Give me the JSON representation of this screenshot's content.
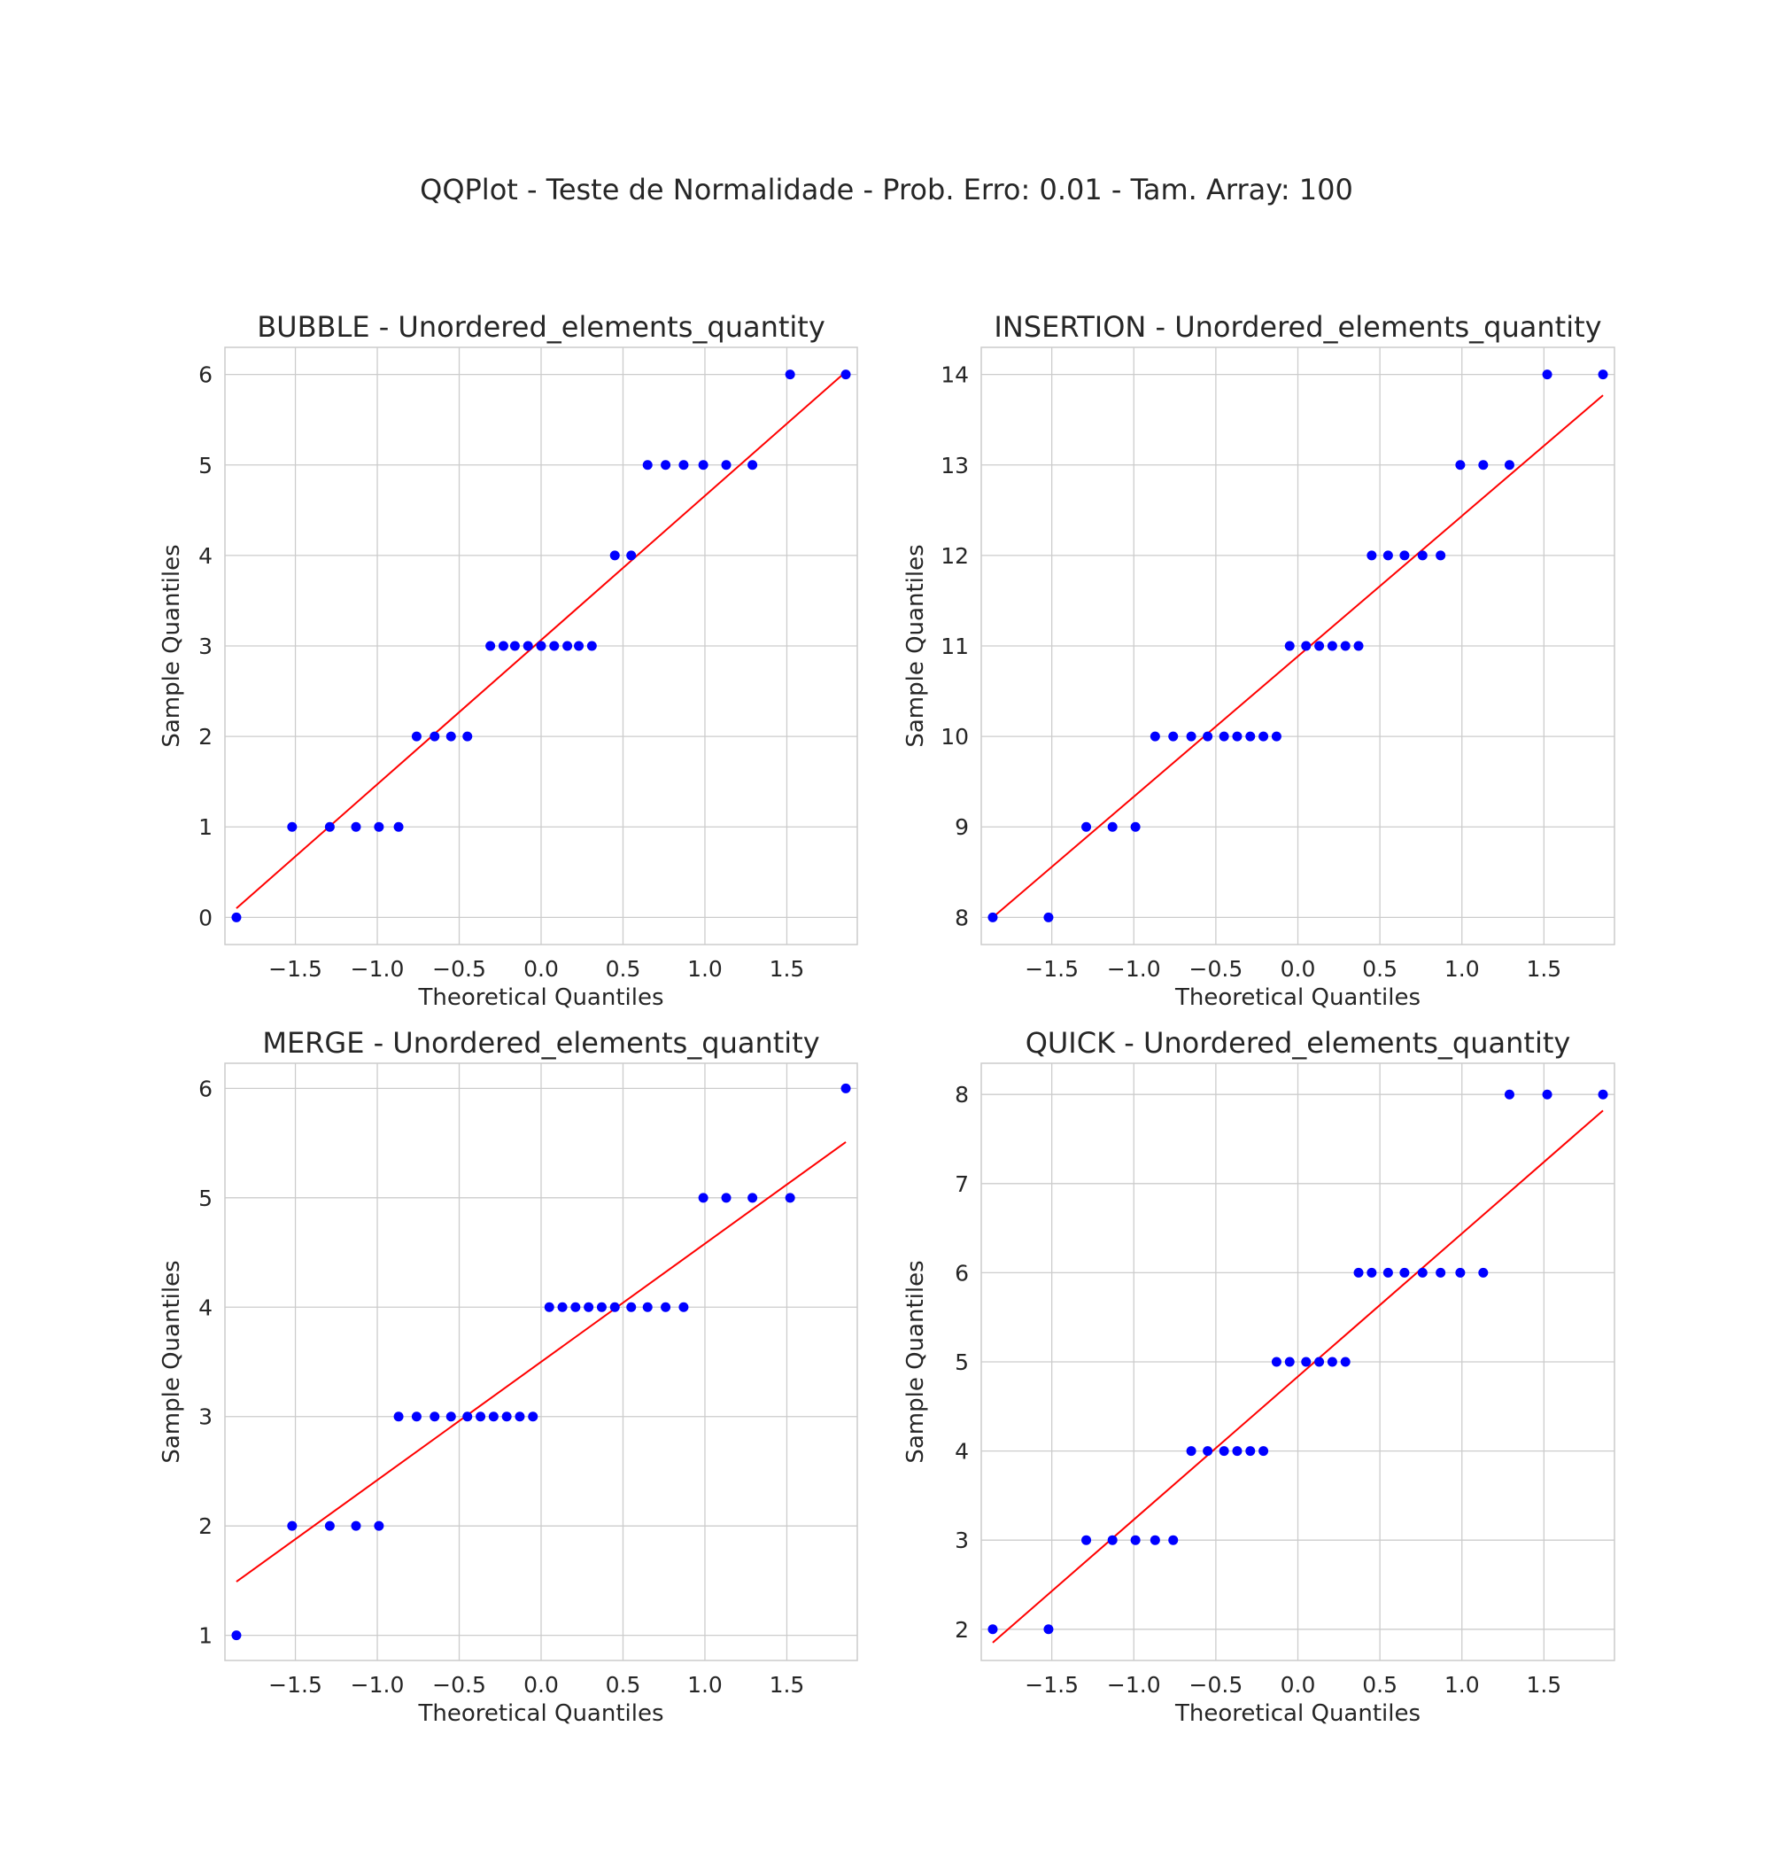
{
  "figure": {
    "suptitle": "QQPlot - Teste de Normalidade - Prob. Erro: 0.01 - Tam. Array: 100"
  },
  "colors": {
    "points": "#0000ff",
    "line": "#ff0000",
    "grid": "#cccccc",
    "frame": "#cccccc",
    "text": "#262626"
  },
  "chart_data": [
    {
      "type": "scatter",
      "title": "BUBBLE - Unordered_elements_quantity",
      "xlabel": "Theoretical Quantiles",
      "ylabel": "Sample Quantiles",
      "xlim": [
        -1.93,
        1.93
      ],
      "ylim": [
        -0.3,
        6.3
      ],
      "xticks": [
        "−1.5",
        "−1.0",
        "−0.5",
        "0.0",
        "0.5",
        "1.0",
        "1.5"
      ],
      "yticks": [
        "0",
        "1",
        "2",
        "3",
        "4",
        "5",
        "6"
      ],
      "grid": true,
      "series": [
        {
          "x": [
            -1.86,
            -1.52,
            -1.29,
            -1.13,
            -0.99,
            -0.87,
            -0.76,
            -0.65,
            -0.55,
            -0.45,
            -0.31,
            -0.23,
            -0.16,
            -0.08,
            0.0,
            0.08,
            0.16,
            0.23,
            0.31,
            0.45,
            0.55,
            0.65,
            0.76,
            0.87,
            0.99,
            1.13,
            1.29,
            1.52,
            1.86
          ],
          "y": [
            0,
            1,
            1,
            1,
            1,
            1,
            2,
            2,
            2,
            2,
            3,
            3,
            3,
            3,
            3,
            3,
            3,
            3,
            3,
            4,
            4,
            5,
            5,
            5,
            5,
            5,
            5,
            6,
            6
          ]
        }
      ],
      "fit_line": {
        "x": [
          -1.86,
          1.86
        ],
        "y": [
          0.1,
          6.03
        ]
      }
    },
    {
      "type": "scatter",
      "title": "INSERTION - Unordered_elements_quantity",
      "xlabel": "Theoretical Quantiles",
      "ylabel": "Sample Quantiles",
      "xlim": [
        -1.93,
        1.93
      ],
      "ylim": [
        7.7,
        14.3
      ],
      "xticks": [
        "−1.5",
        "−1.0",
        "−0.5",
        "0.0",
        "0.5",
        "1.0",
        "1.5"
      ],
      "yticks": [
        "8",
        "9",
        "10",
        "11",
        "12",
        "13",
        "14"
      ],
      "grid": true,
      "series": [
        {
          "x": [
            -1.86,
            -1.52,
            -1.29,
            -1.13,
            -0.99,
            -0.87,
            -0.76,
            -0.65,
            -0.55,
            -0.45,
            -0.37,
            -0.29,
            -0.21,
            -0.13,
            -0.05,
            0.05,
            0.13,
            0.21,
            0.29,
            0.37,
            0.45,
            0.55,
            0.65,
            0.76,
            0.87,
            0.99,
            1.13,
            1.29,
            1.52,
            1.86
          ],
          "y": [
            8,
            8,
            9,
            9,
            9,
            10,
            10,
            10,
            10,
            10,
            10,
            10,
            10,
            10,
            11,
            11,
            11,
            11,
            11,
            11,
            12,
            12,
            12,
            12,
            12,
            13,
            13,
            13,
            14,
            14
          ]
        }
      ],
      "fit_line": {
        "x": [
          -1.86,
          1.86
        ],
        "y": [
          8.0,
          13.77
        ]
      }
    },
    {
      "type": "scatter",
      "title": "MERGE - Unordered_elements_quantity",
      "xlabel": "Theoretical Quantiles",
      "ylabel": "Sample Quantiles",
      "xlim": [
        -1.93,
        1.93
      ],
      "ylim": [
        0.77,
        6.23
      ],
      "xticks": [
        "−1.5",
        "−1.0",
        "−0.5",
        "0.0",
        "0.5",
        "1.0",
        "1.5"
      ],
      "yticks": [
        "1",
        "2",
        "3",
        "4",
        "5",
        "6"
      ],
      "grid": true,
      "series": [
        {
          "x": [
            -1.86,
            -1.52,
            -1.29,
            -1.13,
            -0.99,
            -0.87,
            -0.76,
            -0.65,
            -0.55,
            -0.45,
            -0.37,
            -0.29,
            -0.21,
            -0.13,
            -0.05,
            0.05,
            0.13,
            0.21,
            0.29,
            0.37,
            0.45,
            0.55,
            0.65,
            0.76,
            0.87,
            0.99,
            1.13,
            1.29,
            1.52,
            1.86
          ],
          "y": [
            1,
            2,
            2,
            2,
            2,
            3,
            3,
            3,
            3,
            3,
            3,
            3,
            3,
            3,
            3,
            4,
            4,
            4,
            4,
            4,
            4,
            4,
            4,
            4,
            4,
            5,
            5,
            5,
            5,
            6
          ]
        }
      ],
      "fit_line": {
        "x": [
          -1.86,
          1.86
        ],
        "y": [
          1.49,
          5.51
        ]
      }
    },
    {
      "type": "scatter",
      "title": "QUICK - Unordered_elements_quantity",
      "xlabel": "Theoretical Quantiles",
      "ylabel": "Sample Quantiles",
      "xlim": [
        -1.93,
        1.93
      ],
      "ylim": [
        1.65,
        8.35
      ],
      "xticks": [
        "−1.5",
        "−1.0",
        "−0.5",
        "0.0",
        "0.5",
        "1.0",
        "1.5"
      ],
      "yticks": [
        "2",
        "3",
        "4",
        "5",
        "6",
        "7",
        "8"
      ],
      "grid": true,
      "series": [
        {
          "x": [
            -1.86,
            -1.52,
            -1.29,
            -1.13,
            -0.99,
            -0.87,
            -0.76,
            -0.65,
            -0.55,
            -0.45,
            -0.37,
            -0.29,
            -0.21,
            -0.13,
            -0.05,
            0.05,
            0.13,
            0.21,
            0.29,
            0.37,
            0.45,
            0.55,
            0.65,
            0.76,
            0.87,
            0.99,
            1.13,
            1.29,
            1.52,
            1.86
          ],
          "y": [
            2,
            2,
            3,
            3,
            3,
            3,
            3,
            4,
            4,
            4,
            4,
            4,
            4,
            5,
            5,
            5,
            5,
            5,
            5,
            6,
            6,
            6,
            6,
            6,
            6,
            6,
            6,
            8,
            8,
            8
          ]
        }
      ],
      "fit_line": {
        "x": [
          -1.86,
          1.86
        ],
        "y": [
          1.85,
          7.82
        ]
      }
    }
  ]
}
